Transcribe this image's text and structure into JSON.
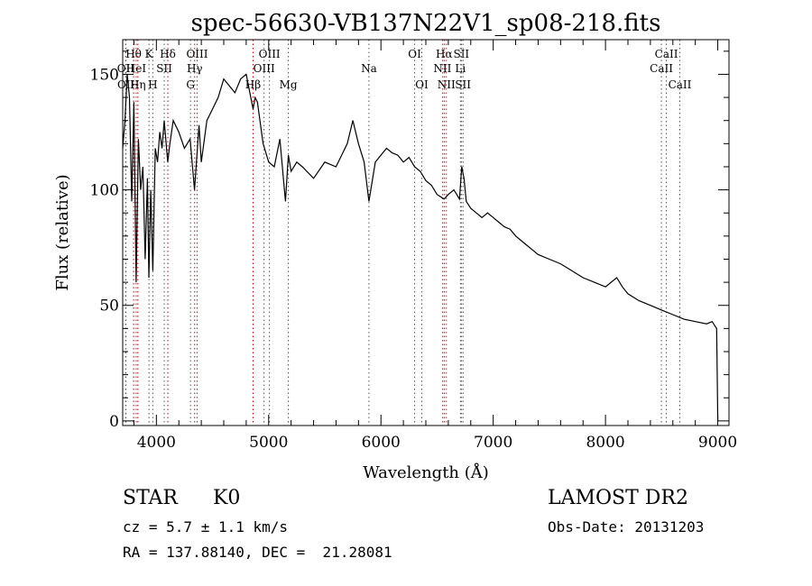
{
  "chart_data": {
    "type": "line",
    "title": "spec-56630-VB137N22V1_sp08-218.fits",
    "xlabel": "Wavelength (Å)",
    "ylabel": "Flux (relative)",
    "xlim": [
      3700,
      9100
    ],
    "ylim": [
      -2,
      165
    ],
    "xticks": [
      4000,
      5000,
      6000,
      7000,
      8000,
      9000
    ],
    "yticks": [
      0,
      50,
      100,
      150
    ],
    "grid": false,
    "series": [
      {
        "x": [
          3700,
          3720,
          3740,
          3760,
          3780,
          3800,
          3820,
          3840,
          3860,
          3880,
          3900,
          3920,
          3933,
          3950,
          3968,
          3990,
          4010,
          4030,
          4050,
          4070,
          4101,
          4120,
          4150,
          4200,
          4250,
          4300,
          4340,
          4380,
          4400,
          4450,
          4500,
          4550,
          4600,
          4650,
          4700,
          4750,
          4800,
          4861,
          4880,
          4900,
          4950,
          5000,
          5050,
          5100,
          5150,
          5175,
          5200,
          5250,
          5300,
          5400,
          5500,
          5600,
          5650,
          5700,
          5750,
          5800,
          5850,
          5893,
          5950,
          6000,
          6050,
          6100,
          6150,
          6200,
          6250,
          6300,
          6350,
          6400,
          6450,
          6500,
          6563,
          6600,
          6650,
          6700,
          6720,
          6740,
          6760,
          6800,
          6850,
          6900,
          6950,
          7000,
          7050,
          7100,
          7150,
          7200,
          7250,
          7300,
          7350,
          7400,
          7500,
          7600,
          7700,
          7800,
          7900,
          8000,
          8050,
          8100,
          8150,
          8200,
          8300,
          8400,
          8500,
          8600,
          8700,
          8800,
          8900,
          8950,
          8990,
          9000
        ],
        "y": [
          118,
          130,
          150,
          140,
          95,
          138,
          60,
          122,
          100,
          110,
          70,
          105,
          62,
          100,
          65,
          118,
          112,
          125,
          118,
          130,
          112,
          120,
          130,
          125,
          118,
          122,
          100,
          128,
          112,
          130,
          135,
          140,
          148,
          145,
          142,
          148,
          150,
          135,
          140,
          138,
          120,
          112,
          110,
          122,
          95,
          115,
          108,
          112,
          110,
          105,
          112,
          110,
          115,
          120,
          130,
          120,
          112,
          95,
          112,
          115,
          118,
          116,
          115,
          112,
          114,
          110,
          108,
          104,
          102,
          98,
          96,
          98,
          100,
          96,
          110,
          105,
          95,
          92,
          90,
          88,
          90,
          88,
          86,
          84,
          83,
          80,
          78,
          76,
          74,
          72,
          70,
          68,
          65,
          62,
          60,
          58,
          60,
          62,
          58,
          55,
          52,
          50,
          48,
          46,
          44,
          43,
          42,
          43,
          40,
          0
        ]
      }
    ],
    "lines": [
      {
        "label": "Hθ",
        "x": 3797,
        "color": "#cc0000",
        "row": 1
      },
      {
        "label": "OII",
        "x": 3727,
        "color": "#555555",
        "row": 2
      },
      {
        "label": "OII",
        "x": 3729,
        "color": "#555555",
        "row": 3
      },
      {
        "label": "K",
        "x": 3934,
        "color": "#555555",
        "row": 1
      },
      {
        "label": "HeI",
        "x": 3820,
        "color": "#555555",
        "row": 2
      },
      {
        "label": "SII",
        "x": 4070,
        "color": "#555555",
        "row": 2
      },
      {
        "label": "Hη",
        "x": 3835,
        "color": "#cc0000",
        "row": 3
      },
      {
        "label": "H",
        "x": 3968,
        "color": "#555555",
        "row": 3
      },
      {
        "label": "Hδ",
        "x": 4102,
        "color": "#cc0000",
        "row": 1
      },
      {
        "label": "OIII",
        "x": 4363,
        "color": "#555555",
        "row": 1
      },
      {
        "label": "Hγ",
        "x": 4341,
        "color": "#cc0000",
        "row": 2
      },
      {
        "label": "G",
        "x": 4304,
        "color": "#555555",
        "row": 3
      },
      {
        "label": "Hβ",
        "x": 4861,
        "color": "#cc0000",
        "row": 3
      },
      {
        "label": "OIII",
        "x": 5007,
        "color": "#555555",
        "row": 1
      },
      {
        "label": "OIII",
        "x": 4959,
        "color": "#555555",
        "row": 2
      },
      {
        "label": "Mg",
        "x": 5175,
        "color": "#555555",
        "row": 3
      },
      {
        "label": "Na",
        "x": 5893,
        "color": "#555555",
        "row": 2
      },
      {
        "label": "OI",
        "x": 6300,
        "color": "#555555",
        "row": 1
      },
      {
        "label": "OI",
        "x": 6364,
        "color": "#555555",
        "row": 3
      },
      {
        "label": "Hα",
        "x": 6563,
        "color": "#cc0000",
        "row": 1
      },
      {
        "label": "SII",
        "x": 6716,
        "color": "#555555",
        "row": 1
      },
      {
        "label": "NII",
        "x": 6548,
        "color": "#555555",
        "row": 2
      },
      {
        "label": "Li",
        "x": 6708,
        "color": "#555555",
        "row": 2
      },
      {
        "label": "NII",
        "x": 6583,
        "color": "#555555",
        "row": 3
      },
      {
        "label": "SII",
        "x": 6731,
        "color": "#555555",
        "row": 3
      },
      {
        "label": "CaII",
        "x": 8542,
        "color": "#555555",
        "row": 1
      },
      {
        "label": "CaII",
        "x": 8498,
        "color": "#555555",
        "row": 2
      },
      {
        "label": "CaII",
        "x": 8662,
        "color": "#555555",
        "row": 3
      }
    ]
  },
  "info": {
    "class_label": "STAR",
    "subclass": "K0",
    "survey": "LAMOST DR2",
    "cz": "cz = 5.7 ± 1.1 km/s",
    "obs_date": "Obs-Date: 20131203",
    "coords": "RA = 137.88140, DEC =  21.28081"
  }
}
